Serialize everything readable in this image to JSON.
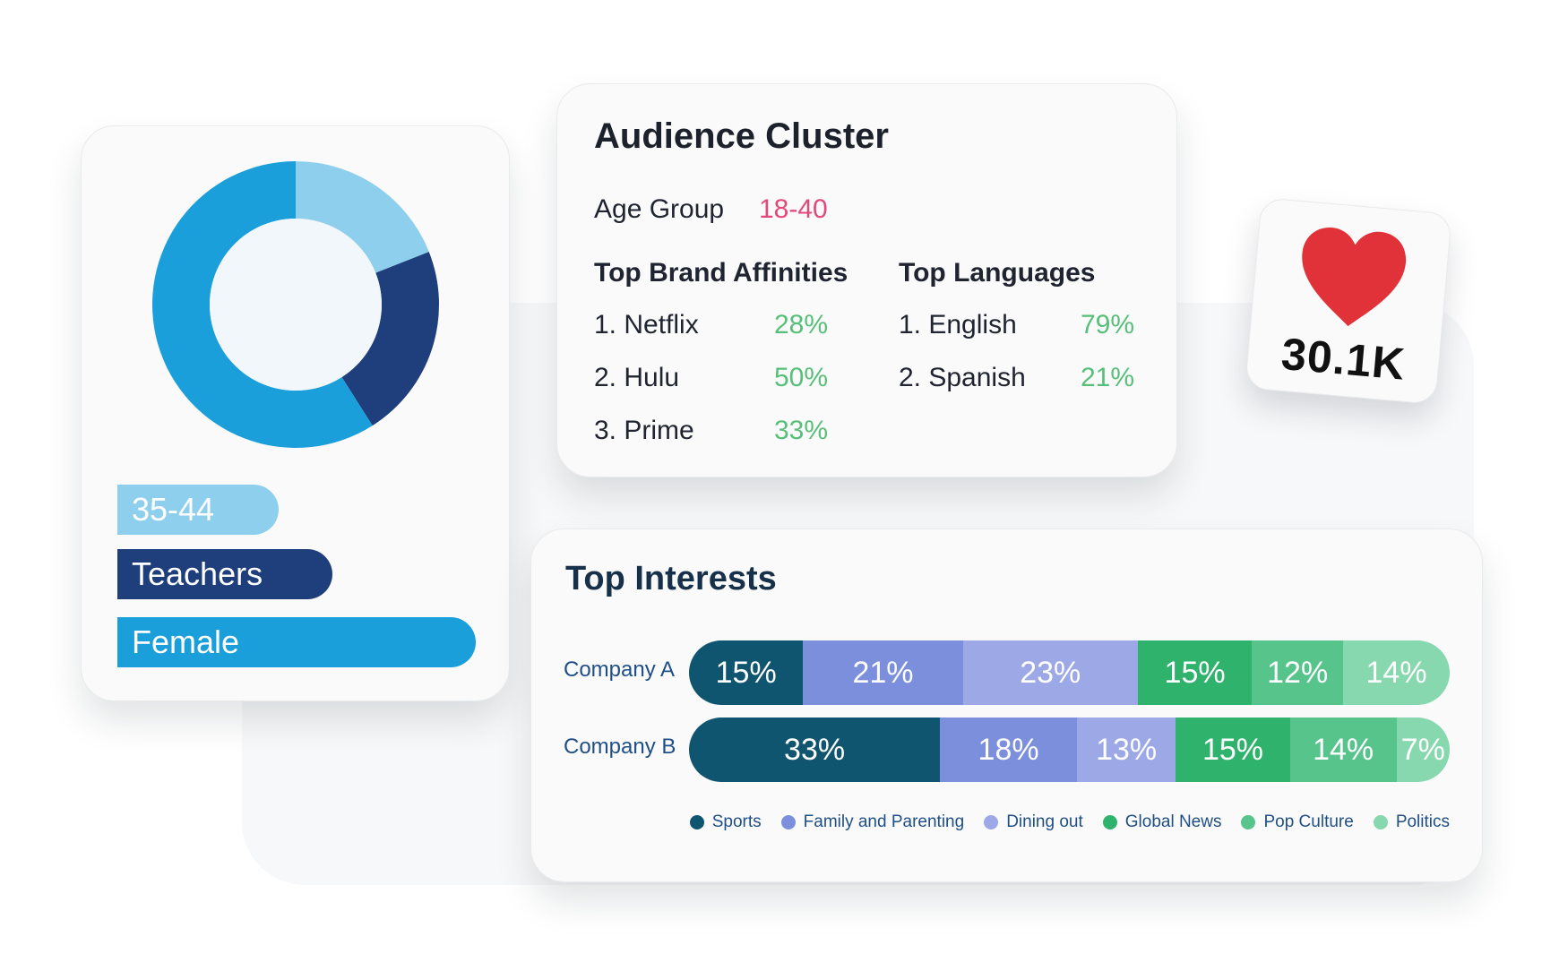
{
  "colors": {
    "donut_light": "#8fcfee",
    "donut_dark": "#1f3f7c",
    "donut_mid": "#1b9fdb",
    "donut_hole": "#f1f7fb",
    "pill_age": "#8fcfee",
    "pill_teachers": "#1f3f7c",
    "pill_female": "#1b9fdb",
    "sports": "#105570",
    "family": "#7b8fdd",
    "dining": "#9da9e6",
    "global_news": "#2fb36c",
    "pop_culture": "#57c58b",
    "politics": "#87d8ae",
    "like_heart": "#e03238",
    "accent_pink": "#e0497a",
    "accent_green": "#58bf7a"
  },
  "profile_card": {
    "donut_icon": "donut-chart-icon",
    "pills": [
      {
        "label": "35-44",
        "fill": 0.45
      },
      {
        "label": "Teachers",
        "fill": 0.6
      },
      {
        "label": "Female",
        "fill": 1.0
      }
    ]
  },
  "audience": {
    "title": "Audience Cluster",
    "age_group_label": "Age Group",
    "age_group_value": "18-40",
    "brand_heading": "Top Brand Affinities",
    "brands": [
      {
        "name": "1. Netflix",
        "pct": "28%"
      },
      {
        "name": "2. Hulu",
        "pct": "50%"
      },
      {
        "name": "3. Prime",
        "pct": "33%"
      }
    ],
    "language_heading": "Top Languages",
    "languages": [
      {
        "name": "1. English",
        "pct": "79%"
      },
      {
        "name": "2. Spanish",
        "pct": "21%"
      }
    ]
  },
  "likes": {
    "icon": "heart-icon",
    "count": "30.1K"
  },
  "chart_data": [
    {
      "type": "pie",
      "title": "",
      "donut": true,
      "slices": [
        {
          "value": 0.19,
          "color": "#8fcfee"
        },
        {
          "value": 0.22,
          "color": "#1f3f7c"
        },
        {
          "value": 0.59,
          "color": "#1b9fdb"
        }
      ]
    },
    {
      "type": "bar",
      "stacked": true,
      "orientation": "horizontal",
      "title": "Top Interests",
      "categories": [
        "Company A",
        "Company B"
      ],
      "series": [
        {
          "name": "Sports",
          "values": [
            15,
            33
          ],
          "color": "#105570"
        },
        {
          "name": "Family and Parenting",
          "values": [
            21,
            18
          ],
          "color": "#7b8fdd"
        },
        {
          "name": "Dining out",
          "values": [
            23,
            13
          ],
          "color": "#9da9e6"
        },
        {
          "name": "Global News",
          "values": [
            15,
            15
          ],
          "color": "#2fb36c"
        },
        {
          "name": "Pop Culture",
          "values": [
            12,
            14
          ],
          "color": "#57c58b"
        },
        {
          "name": "Politics",
          "values": [
            14,
            7
          ],
          "color": "#87d8ae"
        }
      ],
      "data_labels": [
        [
          "15%",
          "21%",
          "23%",
          "15%",
          "12%",
          "14%"
        ],
        [
          "33%",
          "18%",
          "13%",
          "15%",
          "14%",
          "7%"
        ]
      ],
      "legend_position": "bottom-right",
      "grid": false
    }
  ]
}
